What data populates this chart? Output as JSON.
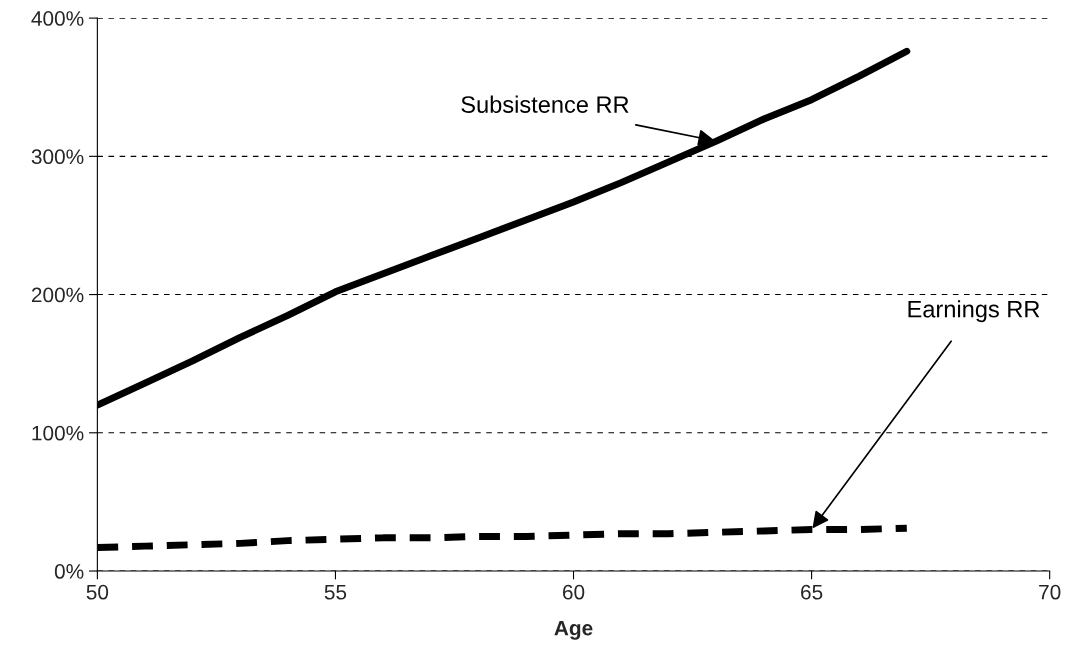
{
  "chart_data": {
    "type": "line",
    "xlabel": "Age",
    "x": [
      50,
      51,
      52,
      53,
      54,
      55,
      56,
      57,
      58,
      59,
      60,
      61,
      62,
      63,
      64,
      65,
      66,
      67
    ],
    "series": [
      {
        "name": "Subsistence RR",
        "color": "#000000",
        "line_style": "solid",
        "values": [
          120,
          136,
          152,
          169,
          185,
          202,
          215,
          228,
          241,
          254,
          267,
          281,
          296,
          311,
          327,
          341,
          358,
          376
        ]
      },
      {
        "name": "Earnings RR",
        "color": "#000000",
        "line_style": "dashed",
        "values": [
          17,
          18,
          19,
          20,
          22,
          23,
          24,
          24,
          25,
          25,
          26,
          27,
          27,
          28,
          29,
          30,
          30,
          31
        ]
      }
    ],
    "xlim": [
      50,
      70
    ],
    "xticks": [
      50,
      55,
      60,
      65,
      70
    ],
    "ylim": [
      0,
      400
    ],
    "yticks": [
      {
        "value": 0,
        "label": "0%"
      },
      {
        "value": 100,
        "label": "100%"
      },
      {
        "value": 200,
        "label": "200%"
      },
      {
        "value": 300,
        "label": "300%"
      },
      {
        "value": 400,
        "label": "400%"
      }
    ],
    "grid": "y",
    "marker": "none"
  }
}
